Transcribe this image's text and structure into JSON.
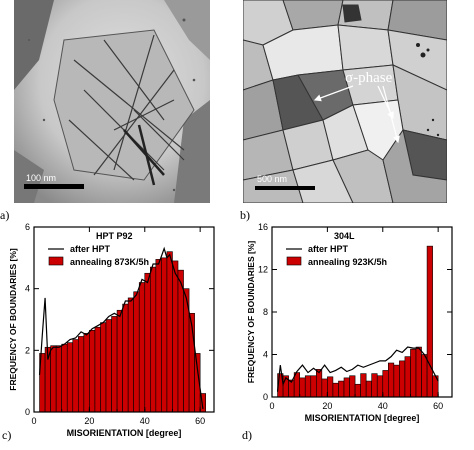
{
  "panels": {
    "a": {
      "label": "a)",
      "scale": "100 nm"
    },
    "b": {
      "label": "b)",
      "scale": "500 nm",
      "annotation": "σ-phase"
    },
    "c": {
      "label": "c)"
    },
    "d": {
      "label": "d)"
    }
  },
  "chart_data": [
    {
      "type": "bar",
      "title": "HPT P92",
      "xlabel": "MISORIENTATION [degree]",
      "ylabel": "FREQUENCY OF BOUNDARIES [%]",
      "xlim": [
        0,
        65
      ],
      "ylim": [
        0,
        6
      ],
      "xticks": [
        "0",
        "20",
        "40",
        "60"
      ],
      "yticks": [
        "0",
        "2",
        "4",
        "6"
      ],
      "legend": "top-left",
      "series": [
        {
          "name": "annealing 873K/5h",
          "kind": "bar",
          "color": "#cc0000",
          "x": [
            3,
            5,
            7,
            9,
            11,
            13,
            15,
            17,
            19,
            21,
            23,
            25,
            27,
            29,
            31,
            33,
            35,
            37,
            39,
            41,
            43,
            45,
            47,
            49,
            51,
            53,
            55,
            57,
            59,
            61
          ],
          "values": [
            1.9,
            2.1,
            2.15,
            2.15,
            2.2,
            2.25,
            2.35,
            2.45,
            2.55,
            2.65,
            2.75,
            2.9,
            3.0,
            3.1,
            3.3,
            3.5,
            3.7,
            3.9,
            4.2,
            4.5,
            4.7,
            4.95,
            5.0,
            5.2,
            4.9,
            4.6,
            4.0,
            3.2,
            1.9,
            0.6
          ]
        },
        {
          "name": "after HPT",
          "kind": "line",
          "color": "#000000",
          "x": [
            2,
            3,
            4,
            5,
            6,
            7,
            9,
            11,
            13,
            15,
            17,
            19,
            21,
            23,
            25,
            27,
            29,
            31,
            33,
            35,
            37,
            39,
            41,
            43,
            45,
            47,
            48,
            49,
            51,
            53,
            55,
            57,
            59,
            61
          ],
          "values": [
            1.2,
            2.5,
            3.7,
            1.7,
            2.0,
            2.1,
            2.1,
            2.2,
            2.35,
            2.4,
            2.6,
            2.5,
            2.7,
            2.8,
            2.9,
            3.1,
            3.2,
            3.1,
            3.6,
            3.6,
            3.8,
            4.3,
            4.2,
            4.8,
            4.8,
            5.3,
            5.0,
            5.1,
            4.5,
            4.2,
            3.7,
            2.8,
            1.4,
            0.1
          ]
        }
      ]
    },
    {
      "type": "bar",
      "title": "304L",
      "xlabel": "MISORIENTATION [degree]",
      "ylabel": "FREQUENCY OF BOUNDARIES [%]",
      "xlim": [
        0,
        65
      ],
      "ylim": [
        0,
        16
      ],
      "xticks": [
        "0",
        "20",
        "40",
        "60"
      ],
      "yticks": [
        "0",
        "4",
        "8",
        "12",
        "16"
      ],
      "legend": "top-left",
      "series": [
        {
          "name": "annealing 923K/5h",
          "kind": "bar",
          "color": "#cc0000",
          "x": [
            3,
            5,
            7,
            9,
            11,
            13,
            15,
            17,
            19,
            21,
            23,
            25,
            27,
            29,
            31,
            33,
            35,
            37,
            39,
            41,
            43,
            45,
            47,
            49,
            51,
            53,
            55,
            57,
            59
          ],
          "values": [
            2.2,
            2.0,
            1.6,
            2.3,
            1.8,
            2.0,
            2.0,
            2.6,
            1.7,
            1.9,
            1.3,
            1.5,
            1.8,
            2.0,
            1.2,
            2.2,
            1.5,
            2.2,
            2.0,
            2.5,
            3.2,
            3.0,
            3.4,
            3.8,
            4.5,
            4.7,
            4.0,
            14.2,
            2.0
          ]
        },
        {
          "name": "after HPT",
          "kind": "line",
          "color": "#000000",
          "x": [
            2,
            3,
            4,
            5,
            7,
            9,
            11,
            13,
            15,
            17,
            19,
            21,
            23,
            25,
            27,
            29,
            31,
            33,
            35,
            37,
            39,
            41,
            43,
            45,
            47,
            49,
            51,
            53,
            55,
            57,
            59,
            60
          ],
          "values": [
            0.5,
            3.0,
            1.2,
            1.8,
            1.4,
            2.4,
            3.0,
            2.3,
            2.7,
            2.3,
            3.0,
            2.3,
            2.5,
            2.8,
            2.4,
            2.6,
            3.0,
            2.8,
            3.0,
            3.2,
            3.4,
            3.4,
            3.8,
            4.4,
            4.2,
            4.7,
            4.6,
            4.6,
            4.0,
            3.0,
            2.0,
            1.5
          ]
        }
      ]
    }
  ]
}
